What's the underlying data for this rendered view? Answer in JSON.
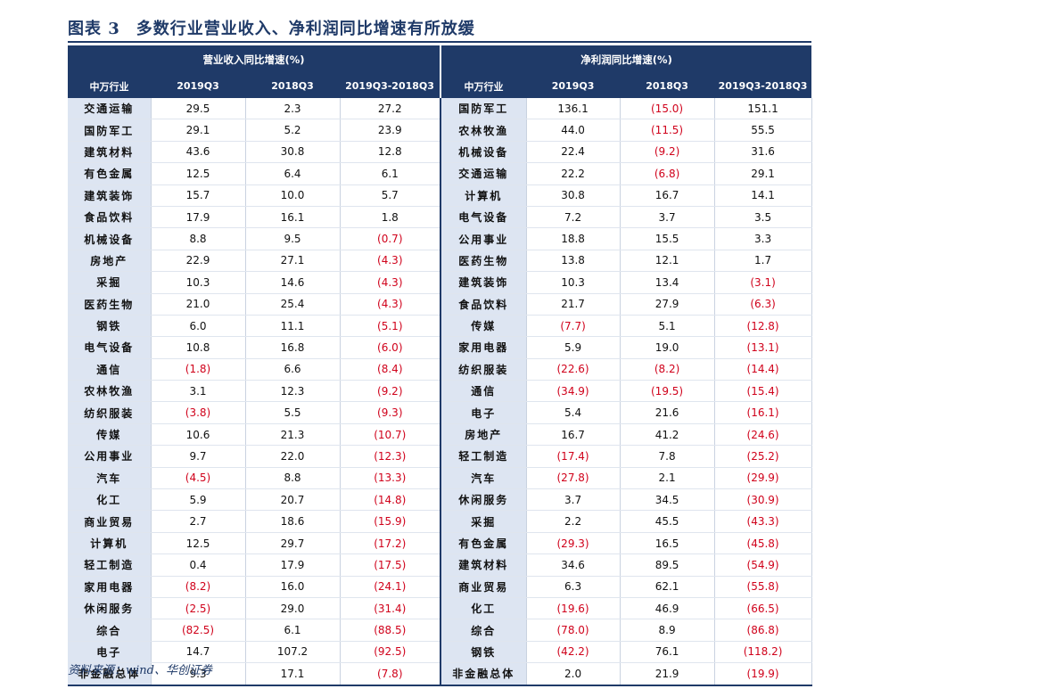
{
  "title": {
    "label": "图表 3",
    "text": "多数行业营业收入、净利润同比增速有所放缓"
  },
  "table": {
    "group_headers": [
      "营业收入同比增速(%)",
      "净利润同比增速(%)"
    ],
    "column_headers": [
      "中万行业",
      "2019Q3",
      "2018Q3",
      "2019Q3-2018Q3",
      "中万行业",
      "2019Q3",
      "2018Q3",
      "2019Q3-2018Q3"
    ],
    "rows": [
      [
        "交通运输",
        "29.5",
        "2.3",
        "27.2",
        "国防军工",
        "136.1",
        "(15.0)",
        "151.1"
      ],
      [
        "国防军工",
        "29.1",
        "5.2",
        "23.9",
        "农林牧渔",
        "44.0",
        "(11.5)",
        "55.5"
      ],
      [
        "建筑材料",
        "43.6",
        "30.8",
        "12.8",
        "机械设备",
        "22.4",
        "(9.2)",
        "31.6"
      ],
      [
        "有色金属",
        "12.5",
        "6.4",
        "6.1",
        "交通运输",
        "22.2",
        "(6.8)",
        "29.1"
      ],
      [
        "建筑装饰",
        "15.7",
        "10.0",
        "5.7",
        "计算机",
        "30.8",
        "16.7",
        "14.1"
      ],
      [
        "食品饮料",
        "17.9",
        "16.1",
        "1.8",
        "电气设备",
        "7.2",
        "3.7",
        "3.5"
      ],
      [
        "机械设备",
        "8.8",
        "9.5",
        "(0.7)",
        "公用事业",
        "18.8",
        "15.5",
        "3.3"
      ],
      [
        "房地产",
        "22.9",
        "27.1",
        "(4.3)",
        "医药生物",
        "13.8",
        "12.1",
        "1.7"
      ],
      [
        "采掘",
        "10.3",
        "14.6",
        "(4.3)",
        "建筑装饰",
        "10.3",
        "13.4",
        "(3.1)"
      ],
      [
        "医药生物",
        "21.0",
        "25.4",
        "(4.3)",
        "食品饮料",
        "21.7",
        "27.9",
        "(6.3)"
      ],
      [
        "钢铁",
        "6.0",
        "11.1",
        "(5.1)",
        "传媒",
        "(7.7)",
        "5.1",
        "(12.8)"
      ],
      [
        "电气设备",
        "10.8",
        "16.8",
        "(6.0)",
        "家用电器",
        "5.9",
        "19.0",
        "(13.1)"
      ],
      [
        "通信",
        "(1.8)",
        "6.6",
        "(8.4)",
        "纺织服装",
        "(22.6)",
        "(8.2)",
        "(14.4)"
      ],
      [
        "农林牧渔",
        "3.1",
        "12.3",
        "(9.2)",
        "通信",
        "(34.9)",
        "(19.5)",
        "(15.4)"
      ],
      [
        "纺织服装",
        "(3.8)",
        "5.5",
        "(9.3)",
        "电子",
        "5.4",
        "21.6",
        "(16.1)"
      ],
      [
        "传媒",
        "10.6",
        "21.3",
        "(10.7)",
        "房地产",
        "16.7",
        "41.2",
        "(24.6)"
      ],
      [
        "公用事业",
        "9.7",
        "22.0",
        "(12.3)",
        "轻工制造",
        "(17.4)",
        "7.8",
        "(25.2)"
      ],
      [
        "汽车",
        "(4.5)",
        "8.8",
        "(13.3)",
        "汽车",
        "(27.8)",
        "2.1",
        "(29.9)"
      ],
      [
        "化工",
        "5.9",
        "20.7",
        "(14.8)",
        "休闲服务",
        "3.7",
        "34.5",
        "(30.9)"
      ],
      [
        "商业贸易",
        "2.7",
        "18.6",
        "(15.9)",
        "采掘",
        "2.2",
        "45.5",
        "(43.3)"
      ],
      [
        "计算机",
        "12.5",
        "29.7",
        "(17.2)",
        "有色金属",
        "(29.3)",
        "16.5",
        "(45.8)"
      ],
      [
        "轻工制造",
        "0.4",
        "17.9",
        "(17.5)",
        "建筑材料",
        "34.6",
        "89.5",
        "(54.9)"
      ],
      [
        "家用电器",
        "(8.2)",
        "16.0",
        "(24.1)",
        "商业贸易",
        "6.3",
        "62.1",
        "(55.8)"
      ],
      [
        "休闲服务",
        "(2.5)",
        "29.0",
        "(31.4)",
        "化工",
        "(19.6)",
        "46.9",
        "(66.5)"
      ],
      [
        "综合",
        "(82.5)",
        "6.1",
        "(88.5)",
        "综合",
        "(78.0)",
        "8.9",
        "(86.8)"
      ],
      [
        "电子",
        "14.7",
        "107.2",
        "(92.5)",
        "钢铁",
        "(42.2)",
        "76.1",
        "(118.2)"
      ],
      [
        "非金融总体",
        "9.3",
        "17.1",
        "(7.8)",
        "非金融总体",
        "2.0",
        "21.9",
        "(19.9)"
      ]
    ]
  },
  "source": "资料来源：wind、华创证券",
  "colors": {
    "header_bg": "#1f3a68",
    "industry_bg": "#dde5f2",
    "negative": "#d0021b"
  }
}
